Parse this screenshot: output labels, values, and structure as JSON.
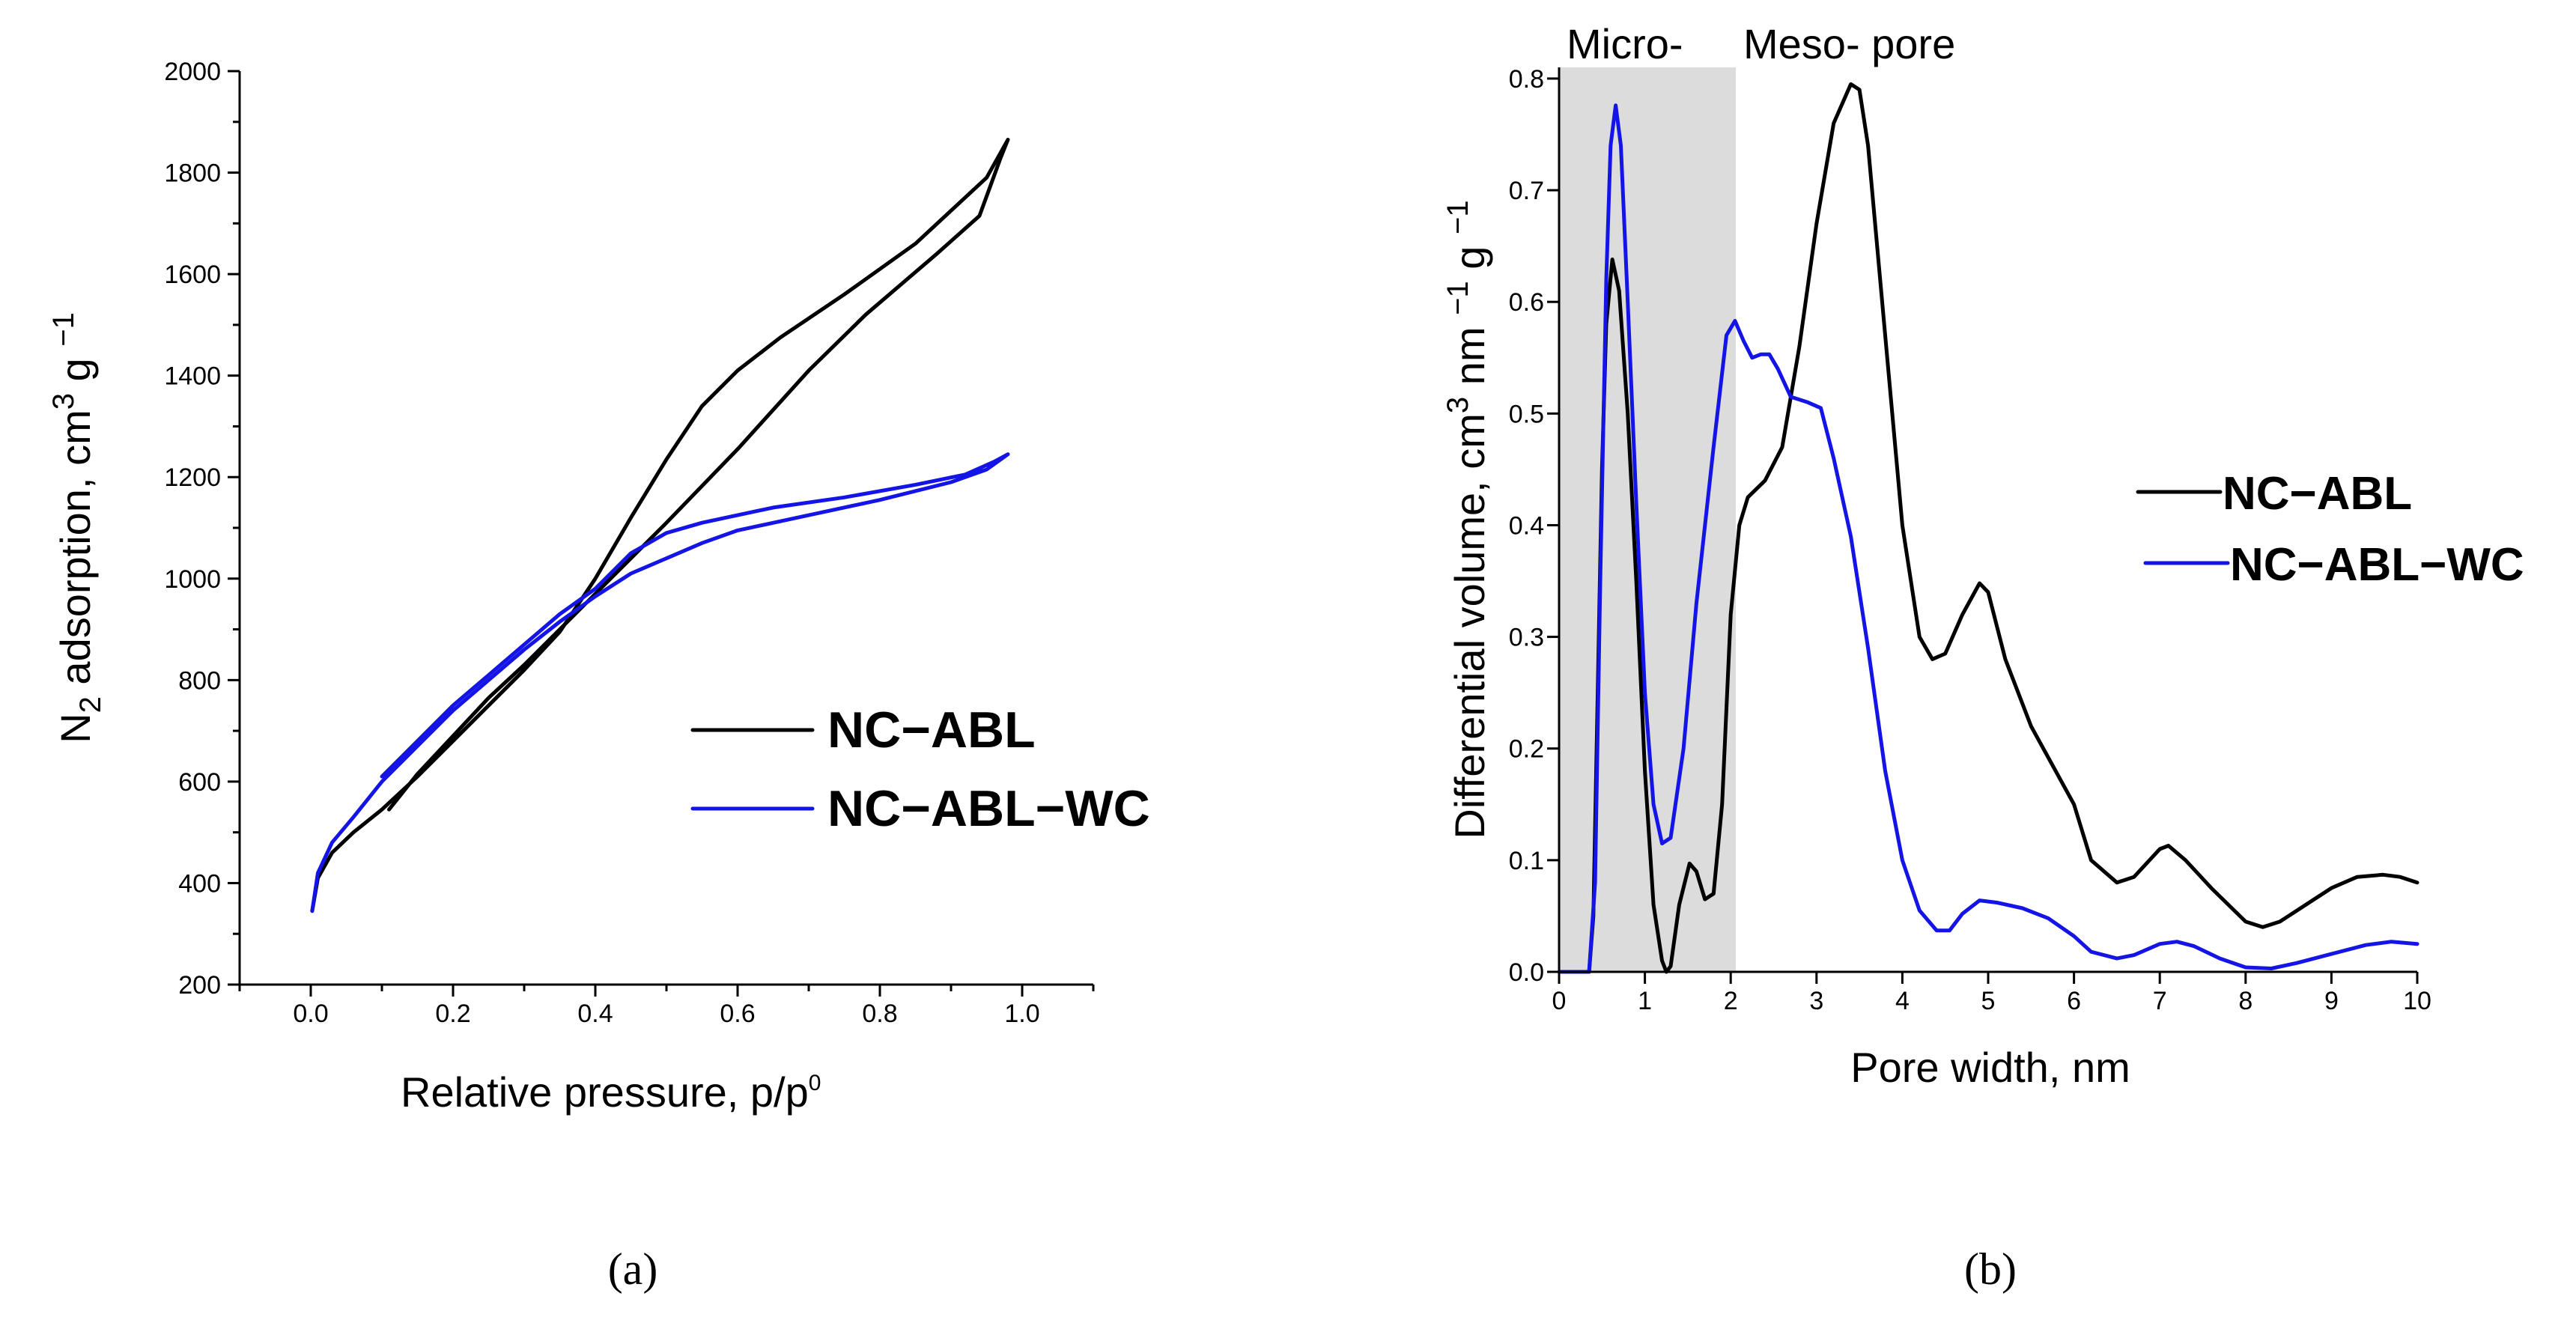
{
  "chart_data": [
    {
      "id": "a",
      "type": "line",
      "caption": "(a)",
      "xlabel": "Relative pressure, p/p",
      "xlabel_sup": "0",
      "ylabel_pre": "N",
      "ylabel_sub": "2",
      "ylabel_mid": " adsorption, cm",
      "ylabel_sup1": "3",
      "ylabel_post": " g ",
      "ylabel_sup2": "−1",
      "xlim": [
        -0.1,
        1.1
      ],
      "ylim": [
        200,
        2000
      ],
      "xticks": [
        0.0,
        0.2,
        0.4,
        0.6,
        0.8,
        1.0
      ],
      "xtick_labels": [
        "0.0",
        "0.2",
        "0.4",
        "0.6",
        "0.8",
        "1.0"
      ],
      "yticks": [
        200,
        400,
        600,
        800,
        1000,
        1200,
        1400,
        1600,
        1800,
        2000
      ],
      "ytick_labels": [
        "200",
        "400",
        "600",
        "800",
        "1000",
        "1200",
        "1400",
        "1600",
        "1800",
        "2000"
      ],
      "legend": [
        "NC−ABL",
        "NC−ABL−WC"
      ],
      "series": [
        {
          "name": "NC−ABL",
          "color": "#000000",
          "points": [
            [
              0.002,
              345
            ],
            [
              0.01,
              410
            ],
            [
              0.03,
              460
            ],
            [
              0.06,
              500
            ],
            [
              0.1,
              545
            ],
            [
              0.15,
              610
            ],
            [
              0.2,
              680
            ],
            [
              0.25,
              750
            ],
            [
              0.3,
              820
            ],
            [
              0.35,
              895
            ],
            [
              0.4,
              1000
            ],
            [
              0.45,
              1120
            ],
            [
              0.5,
              1235
            ],
            [
              0.55,
              1340
            ],
            [
              0.6,
              1410
            ],
            [
              0.66,
              1475
            ],
            [
              0.75,
              1560
            ],
            [
              0.85,
              1660
            ],
            [
              0.95,
              1790
            ],
            [
              0.98,
              1865
            ],
            [
              0.97,
              1830
            ],
            [
              0.94,
              1715
            ],
            [
              0.88,
              1640
            ],
            [
              0.78,
              1520
            ],
            [
              0.7,
              1410
            ],
            [
              0.6,
              1255
            ],
            [
              0.5,
              1110
            ],
            [
              0.45,
              1040
            ],
            [
              0.4,
              970
            ],
            [
              0.35,
              900
            ],
            [
              0.3,
              830
            ],
            [
              0.25,
              765
            ],
            [
              0.2,
              690
            ],
            [
              0.15,
              615
            ],
            [
              0.11,
              545
            ]
          ]
        },
        {
          "name": "NC−ABL−WC",
          "color": "#1414e6",
          "points": [
            [
              0.002,
              345
            ],
            [
              0.01,
              420
            ],
            [
              0.03,
              480
            ],
            [
              0.06,
              530
            ],
            [
              0.1,
              600
            ],
            [
              0.15,
              670
            ],
            [
              0.2,
              740
            ],
            [
              0.25,
              800
            ],
            [
              0.3,
              860
            ],
            [
              0.35,
              915
            ],
            [
              0.4,
              965
            ],
            [
              0.45,
              1010
            ],
            [
              0.5,
              1040
            ],
            [
              0.55,
              1070
            ],
            [
              0.6,
              1095
            ],
            [
              0.7,
              1125
            ],
            [
              0.8,
              1155
            ],
            [
              0.9,
              1190
            ],
            [
              0.95,
              1215
            ],
            [
              0.98,
              1245
            ],
            [
              0.96,
              1230
            ],
            [
              0.92,
              1205
            ],
            [
              0.85,
              1185
            ],
            [
              0.75,
              1160
            ],
            [
              0.65,
              1140
            ],
            [
              0.55,
              1110
            ],
            [
              0.5,
              1090
            ],
            [
              0.45,
              1050
            ],
            [
              0.4,
              980
            ],
            [
              0.35,
              930
            ],
            [
              0.3,
              870
            ],
            [
              0.25,
              810
            ],
            [
              0.2,
              750
            ],
            [
              0.15,
              680
            ],
            [
              0.1,
              610
            ]
          ]
        }
      ]
    },
    {
      "id": "b",
      "type": "line",
      "caption": "(b)",
      "xlabel": "Pore width, nm",
      "ylabel_pre": "Differential volume, cm",
      "ylabel_sup1": "3",
      "ylabel_mid": " nm ",
      "ylabel_sup2": "−1",
      "ylabel_post": " g ",
      "ylabel_sup3": "−1",
      "xlim": [
        0,
        10
      ],
      "ylim": [
        0,
        0.81
      ],
      "xticks": [
        0,
        1,
        2,
        3,
        4,
        5,
        6,
        7,
        8,
        9,
        10
      ],
      "xtick_labels": [
        "0",
        "1",
        "2",
        "3",
        "4",
        "5",
        "6",
        "7",
        "8",
        "9",
        "10"
      ],
      "yticks": [
        0.0,
        0.1,
        0.2,
        0.3,
        0.4,
        0.5,
        0.6,
        0.7,
        0.8
      ],
      "ytick_labels": [
        "0.0",
        "0.1",
        "0.2",
        "0.3",
        "0.4",
        "0.5",
        "0.6",
        "0.7",
        "0.8"
      ],
      "regions": [
        {
          "label": "Micro-",
          "x_range": [
            0,
            2
          ],
          "fill": "#dcdcdc"
        },
        {
          "label": "Meso- pore",
          "x_range": [
            2,
            10
          ],
          "fill": "none"
        }
      ],
      "legend": [
        "NC−ABL",
        "NC−ABL−WC"
      ],
      "series": [
        {
          "name": "NC−ABL",
          "color": "#000000",
          "points": [
            [
              0.0,
              0.0
            ],
            [
              0.35,
              0.0
            ],
            [
              0.4,
              0.05
            ],
            [
              0.45,
              0.25
            ],
            [
              0.5,
              0.45
            ],
            [
              0.55,
              0.58
            ],
            [
              0.62,
              0.638
            ],
            [
              0.7,
              0.61
            ],
            [
              0.8,
              0.5
            ],
            [
              0.9,
              0.35
            ],
            [
              1.0,
              0.18
            ],
            [
              1.1,
              0.06
            ],
            [
              1.2,
              0.01
            ],
            [
              1.25,
              0.0
            ],
            [
              1.3,
              0.005
            ],
            [
              1.4,
              0.06
            ],
            [
              1.52,
              0.097
            ],
            [
              1.6,
              0.09
            ],
            [
              1.7,
              0.065
            ],
            [
              1.8,
              0.07
            ],
            [
              1.9,
              0.15
            ],
            [
              2.0,
              0.32
            ],
            [
              2.1,
              0.4
            ],
            [
              2.2,
              0.425
            ],
            [
              2.4,
              0.44
            ],
            [
              2.6,
              0.47
            ],
            [
              2.8,
              0.56
            ],
            [
              3.0,
              0.67
            ],
            [
              3.2,
              0.76
            ],
            [
              3.4,
              0.795
            ],
            [
              3.5,
              0.79
            ],
            [
              3.6,
              0.74
            ],
            [
              3.8,
              0.57
            ],
            [
              4.0,
              0.4
            ],
            [
              4.2,
              0.3
            ],
            [
              4.35,
              0.28
            ],
            [
              4.5,
              0.285
            ],
            [
              4.7,
              0.32
            ],
            [
              4.9,
              0.348
            ],
            [
              5.0,
              0.34
            ],
            [
              5.2,
              0.28
            ],
            [
              5.5,
              0.22
            ],
            [
              6.0,
              0.15
            ],
            [
              6.2,
              0.1
            ],
            [
              6.5,
              0.08
            ],
            [
              6.7,
              0.085
            ],
            [
              7.0,
              0.11
            ],
            [
              7.1,
              0.113
            ],
            [
              7.3,
              0.1
            ],
            [
              7.6,
              0.075
            ],
            [
              8.0,
              0.045
            ],
            [
              8.2,
              0.04
            ],
            [
              8.4,
              0.045
            ],
            [
              8.7,
              0.06
            ],
            [
              9.0,
              0.075
            ],
            [
              9.3,
              0.085
            ],
            [
              9.6,
              0.087
            ],
            [
              9.8,
              0.085
            ],
            [
              10.0,
              0.08
            ]
          ]
        },
        {
          "name": "NC−ABL−WC",
          "color": "#1414e6",
          "points": [
            [
              0.0,
              0.0
            ],
            [
              0.35,
              0.0
            ],
            [
              0.42,
              0.08
            ],
            [
              0.48,
              0.35
            ],
            [
              0.55,
              0.62
            ],
            [
              0.6,
              0.74
            ],
            [
              0.66,
              0.776
            ],
            [
              0.72,
              0.74
            ],
            [
              0.8,
              0.6
            ],
            [
              0.9,
              0.42
            ],
            [
              1.0,
              0.25
            ],
            [
              1.1,
              0.15
            ],
            [
              1.2,
              0.115
            ],
            [
              1.3,
              0.12
            ],
            [
              1.45,
              0.2
            ],
            [
              1.6,
              0.33
            ],
            [
              1.8,
              0.47
            ],
            [
              1.95,
              0.57
            ],
            [
              2.05,
              0.583
            ],
            [
              2.15,
              0.565
            ],
            [
              2.25,
              0.55
            ],
            [
              2.35,
              0.553
            ],
            [
              2.45,
              0.553
            ],
            [
              2.55,
              0.54
            ],
            [
              2.7,
              0.515
            ],
            [
              2.9,
              0.51
            ],
            [
              3.05,
              0.505
            ],
            [
              3.2,
              0.46
            ],
            [
              3.4,
              0.39
            ],
            [
              3.6,
              0.29
            ],
            [
              3.8,
              0.18
            ],
            [
              4.0,
              0.1
            ],
            [
              4.2,
              0.055
            ],
            [
              4.4,
              0.037
            ],
            [
              4.55,
              0.037
            ],
            [
              4.7,
              0.052
            ],
            [
              4.9,
              0.064
            ],
            [
              5.1,
              0.062
            ],
            [
              5.4,
              0.057
            ],
            [
              5.7,
              0.048
            ],
            [
              6.0,
              0.032
            ],
            [
              6.2,
              0.018
            ],
            [
              6.5,
              0.012
            ],
            [
              6.7,
              0.015
            ],
            [
              7.0,
              0.025
            ],
            [
              7.2,
              0.027
            ],
            [
              7.4,
              0.023
            ],
            [
              7.7,
              0.012
            ],
            [
              8.0,
              0.004
            ],
            [
              8.3,
              0.003
            ],
            [
              8.6,
              0.008
            ],
            [
              9.0,
              0.016
            ],
            [
              9.4,
              0.024
            ],
            [
              9.7,
              0.027
            ],
            [
              10.0,
              0.025
            ]
          ]
        }
      ]
    }
  ]
}
